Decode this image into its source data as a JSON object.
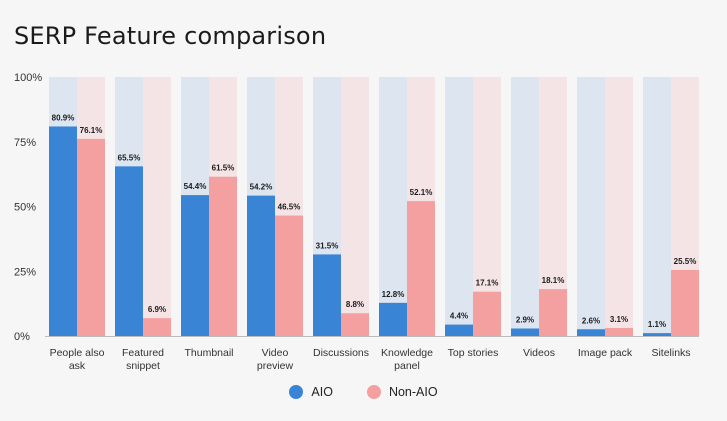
{
  "page": {
    "title": "SERP Feature comparison"
  },
  "chart_data": {
    "type": "bar",
    "title": "SERP Feature comparison",
    "xlabel": "",
    "ylabel": "",
    "ylim": [
      0,
      100
    ],
    "y_ticks": [
      "0%",
      "25%",
      "50%",
      "75%",
      "100%"
    ],
    "y_tick_values": [
      0,
      25,
      50,
      75,
      100
    ],
    "grid": false,
    "legend_position": "bottom-center",
    "categories": [
      [
        "People also",
        "ask"
      ],
      [
        "Featured",
        "snippet"
      ],
      [
        "Thumbnail"
      ],
      [
        "Video",
        "preview"
      ],
      [
        "Discussions"
      ],
      [
        "Knowledge",
        "panel"
      ],
      [
        "Top stories"
      ],
      [
        "Videos"
      ],
      [
        "Image pack"
      ],
      [
        "Sitelinks"
      ]
    ],
    "series": [
      {
        "name": "AIO",
        "color": "#3a84d6",
        "bg_color": "#dde6f0",
        "values": [
          80.9,
          65.5,
          54.4,
          54.2,
          31.5,
          12.8,
          4.4,
          2.9,
          2.6,
          1.1
        ],
        "labels": [
          "80.9%",
          "65.5%",
          "54.4%",
          "54.2%",
          "31.5%",
          "12.8%",
          "4.4%",
          "2.9%",
          "2.6%",
          "1.1%"
        ]
      },
      {
        "name": "Non-AIO",
        "color": "#f5a0a0",
        "bg_color": "#f5e4e6",
        "values": [
          76.1,
          6.9,
          61.5,
          46.5,
          8.8,
          52.1,
          17.1,
          18.1,
          3.1,
          25.5
        ],
        "labels": [
          "76.1%",
          "6.9%",
          "61.5%",
          "46.5%",
          "8.8%",
          "52.1%",
          "17.1%",
          "18.1%",
          "3.1%",
          "25.5%"
        ]
      }
    ]
  }
}
